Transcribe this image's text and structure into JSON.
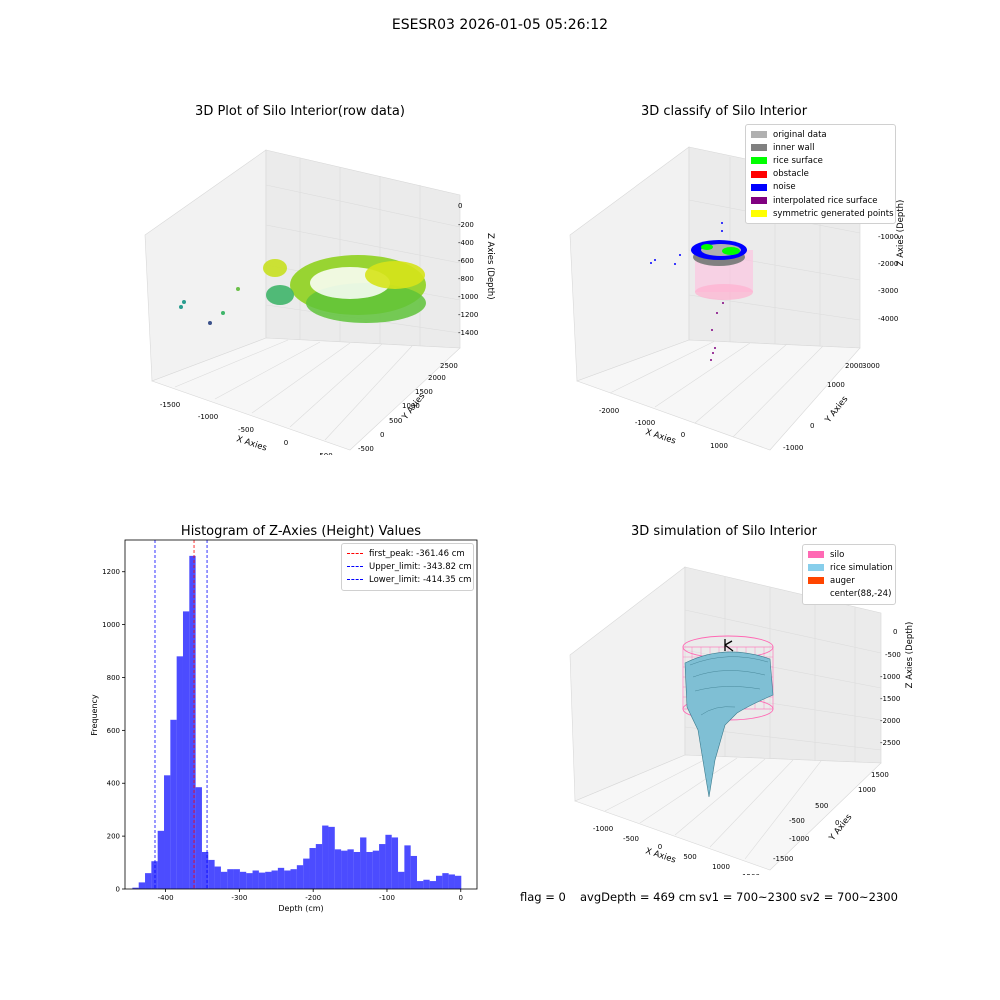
{
  "suptitle": "ESESR03 2026-01-05 05:26:12",
  "plot1": {
    "title": "3D Plot of Silo Interior(row data)",
    "xlabel": "X Axies",
    "ylabel": "Y Axies",
    "zlabel": "Z Axies (Depth)",
    "xticks": [
      "-1500",
      "-1000",
      "-500",
      "0",
      "500"
    ],
    "yticks": [
      "-500",
      "0",
      "500",
      "1000",
      "1500",
      "2000",
      "2500"
    ],
    "zticks": [
      "0",
      "-200",
      "-400",
      "-600",
      "-800",
      "-1000",
      "-1200",
      "-1400"
    ]
  },
  "plot2": {
    "title": "3D classify of Silo Interior",
    "xlabel": "X Axies",
    "ylabel": "Y Axies",
    "zlabel": "Z Axies (Depth)",
    "xticks": [
      "-2000",
      "-1000",
      "0",
      "1000",
      "2000"
    ],
    "yticks": [
      "-1000",
      "0",
      "1000",
      "2000",
      "3000"
    ],
    "zticks": [
      "0",
      "-1000",
      "-2000",
      "-3000",
      "-4000"
    ],
    "legend": [
      {
        "label": "original data",
        "color": "#b0b0b0"
      },
      {
        "label": "inner wall",
        "color": "#808080"
      },
      {
        "label": "rice surface",
        "color": "#00ff00"
      },
      {
        "label": "obstacle",
        "color": "#ff0000"
      },
      {
        "label": "noise",
        "color": "#0000ff"
      },
      {
        "label": "interpolated rice surface",
        "color": "#800080"
      },
      {
        "label": "symmetric generated points",
        "color": "#ffff00"
      }
    ]
  },
  "plot3": {
    "title": "Histogram of Z-Axies (Height) Values",
    "legend": [
      {
        "label": "first_peak: -361.46 cm",
        "color": "#ff0000"
      },
      {
        "label": "Upper_limit: -343.82 cm",
        "color": "#0000ff"
      },
      {
        "label": "Lower_limit: -414.35 cm",
        "color": "#0000ff"
      }
    ]
  },
  "plot4": {
    "title": "3D simulation of Silo Interior",
    "xlabel": "X Axies",
    "ylabel": "Y Axies",
    "zlabel": "Z Axies (Depth)",
    "xticks": [
      "-1000",
      "-500",
      "0",
      "500",
      "1000",
      "1500"
    ],
    "yticks": [
      "-1500",
      "-1000",
      "-500",
      "0",
      "500",
      "1000",
      "1500"
    ],
    "zticks": [
      "0",
      "-500",
      "-1000",
      "-1500",
      "-2000",
      "-2500"
    ],
    "legend": [
      {
        "label": "silo",
        "color": "#ff69b4"
      },
      {
        "label": "rice simulation",
        "color": "#87ceeb"
      },
      {
        "label": "auger",
        "color": "#ff4500"
      },
      {
        "label": "center(88,-24)",
        "color": "#ffffff"
      }
    ]
  },
  "status": {
    "flag": "flag = 0",
    "avg_depth": "avgDepth = 469 cm",
    "sv1": "sv1 = 700~2300",
    "sv2": "sv2 = 700~2300"
  },
  "chart_data": {
    "type": "bar",
    "title": "Histogram of Z-Axies (Height) Values",
    "xlabel": "Depth (cm)",
    "ylabel": "Frequency",
    "xlim": [
      -455,
      22
    ],
    "ylim": [
      0,
      1320
    ],
    "xticks": [
      -400,
      -300,
      -200,
      -100,
      0
    ],
    "yticks": [
      0,
      200,
      400,
      600,
      800,
      1000,
      1200
    ],
    "bin_width": 8.57,
    "bin_starts": [
      -445,
      -436.43,
      -427.86,
      -419.29,
      -410.71,
      -402.14,
      -393.57,
      -385,
      -376.43,
      -367.86,
      -359.29,
      -350.71,
      -342.14,
      -333.57,
      -325,
      -316.43,
      -307.86,
      -299.29,
      -290.71,
      -282.14,
      -273.57,
      -265,
      -256.43,
      -247.86,
      -239.29,
      -230.71,
      -222.14,
      -213.57,
      -205,
      -196.43,
      -187.86,
      -179.29,
      -170.71,
      -162.14,
      -153.57,
      -145,
      -136.43,
      -127.86,
      -119.29,
      -110.71,
      -102.14,
      -93.57,
      -85,
      -76.43,
      -67.86,
      -59.29,
      -50.71,
      -42.14,
      -33.57,
      -25,
      -16.43,
      -7.86
    ],
    "values": [
      5,
      25,
      60,
      105,
      220,
      430,
      640,
      880,
      1050,
      1260,
      385,
      140,
      110,
      85,
      65,
      75,
      75,
      65,
      60,
      70,
      62,
      65,
      70,
      80,
      70,
      75,
      90,
      115,
      155,
      170,
      240,
      235,
      150,
      145,
      150,
      140,
      195,
      140,
      145,
      170,
      205,
      195,
      65,
      165,
      125,
      30,
      35,
      30,
      50,
      60,
      55,
      50
    ],
    "vlines": [
      {
        "x": -361.46,
        "color": "#ff0000"
      },
      {
        "x": -343.82,
        "color": "#0000ff"
      },
      {
        "x": -414.35,
        "color": "#0000ff"
      }
    ],
    "bar_color": "#0000ff",
    "legend_position": "upper right"
  }
}
